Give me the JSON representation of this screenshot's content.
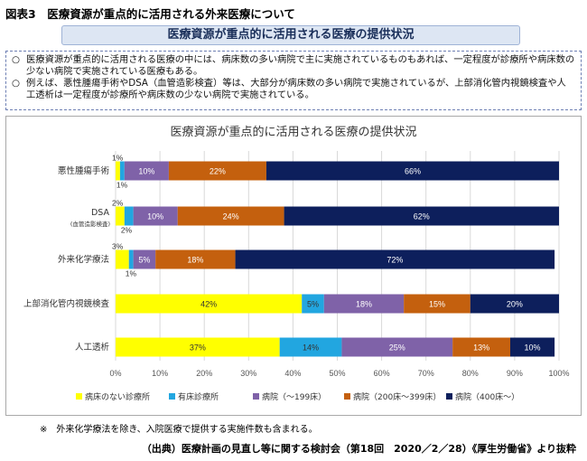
{
  "figure_title": "図表3　医療資源が重点的に活用される外来医療について",
  "banner_title": "医療資源が重点的に活用される医療の提供状況",
  "notes": [
    {
      "mark": "○",
      "text": "医療資源が重点的に活用される医療の中には、病床数の多い病院で主に実施されているものもあれば、一定程度が診療所や病床数の少ない病院で実施されている医療もある。"
    },
    {
      "mark": "○",
      "text": "例えば、悪性腫瘍手術やDSA（血管造影検査）等は、大部分が病床数の多い病院で実施されているが、上部消化管内視鏡検査や人工透析は一定程度が診療所や病床数の少ない病院で実施されている。"
    }
  ],
  "colors": {
    "clinic_no_bed": "#ffff00",
    "clinic_bed": "#22a6e0",
    "hospital_small": "#7f62a8",
    "hospital_mid": "#c4600e",
    "hospital_large": "#0d1f5c"
  },
  "chart_data": {
    "type": "bar",
    "orientation": "horizontal",
    "stacked": true,
    "title": "医療資源が重点的に活用される医療の提供状況",
    "categories": [
      "悪性腫瘍手術",
      "DSA",
      "外来化学療法",
      "上部消化管内視鏡検査",
      "人工透析"
    ],
    "category_sublabels": [
      "",
      "(血管造影検査)",
      "",
      "",
      ""
    ],
    "series": [
      {
        "name": "病床のない診療所",
        "color": "#ffff00",
        "values": [
          1,
          2,
          3,
          42,
          37
        ],
        "labels": [
          "1%",
          "2%",
          "3%",
          "42%",
          "37%"
        ]
      },
      {
        "name": "有床診療所",
        "color": "#22a6e0",
        "values": [
          1,
          2,
          1,
          5,
          14
        ],
        "labels": [
          "1%",
          "2%",
          "1%",
          "5%",
          "14%"
        ]
      },
      {
        "name": "病院（～199床）",
        "color": "#7f62a8",
        "values": [
          10,
          10,
          5,
          18,
          25
        ],
        "labels": [
          "10%",
          "10%",
          "5%",
          "18%",
          "25%"
        ]
      },
      {
        "name": "病院（200床～399床）",
        "color": "#c4600e",
        "values": [
          22,
          24,
          18,
          15,
          13
        ],
        "labels": [
          "22%",
          "24%",
          "18%",
          "15%",
          "13%"
        ]
      },
      {
        "name": "病院（400床～）",
        "color": "#0d1f5c",
        "values": [
          66,
          62,
          72,
          20,
          10
        ],
        "labels": [
          "66%",
          "62%",
          "72%",
          "20%",
          "10%"
        ]
      }
    ],
    "xlim": [
      0,
      100
    ],
    "xticks": [
      "0%",
      "10%",
      "20%",
      "30%",
      "40%",
      "50%",
      "60%",
      "70%",
      "80%",
      "90%",
      "100%"
    ],
    "grid": true,
    "legend_position": "bottom"
  },
  "footnote": "※　外来化学療法を除き、入院医療で提供する実施件数も含まれる。",
  "source": "（出典）医療計画の見直し等に関する検討会（第18回　2020／2／28）《厚生労働省》より抜粋"
}
